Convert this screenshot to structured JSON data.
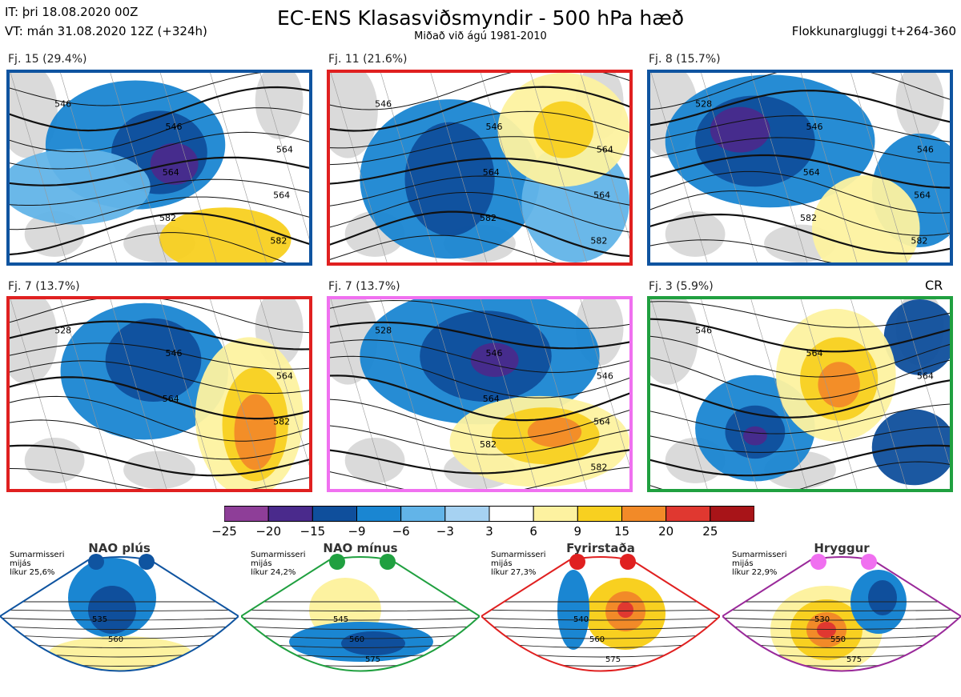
{
  "header": {
    "init_time": "IT: þri 18.08.2020 00Z",
    "valid_time": "VT: mán 31.08.2020 12Z  (+324h)",
    "title": "EC-ENS Klasasviðsmyndir - 500 hPa hæð",
    "subtitle": "Miðað við ágú 1981-2010",
    "window": "Flokkunargluggi t+264-360"
  },
  "chart_data": {
    "type": "heatmap",
    "title": "EC-ENS Klasasviðsmyndir - 500 hPa hæð",
    "subtitle": "Miðað við ágú 1981-2010",
    "colorbar": {
      "ticks": [
        "−25",
        "−20",
        "−15",
        "−9",
        "−6",
        "−3",
        "3",
        "6",
        "9",
        "15",
        "20",
        "25"
      ],
      "colors": [
        "#8e3e98",
        "#4a2a8c",
        "#0f4f9c",
        "#1a86d2",
        "#62b4e8",
        "#a6d2f2",
        "#ffffff",
        "#fdf2a0",
        "#f8d020",
        "#f28a28",
        "#e03830",
        "#a81418"
      ]
    },
    "clusters": [
      {
        "label": "Fj. 15 (29.4%)",
        "members": 15,
        "percent": 29.4,
        "regime": "NAO plús",
        "border_color": "#0f54a0",
        "contour_labels": [
          "546",
          "546",
          "564",
          "564",
          "564",
          "582",
          "582"
        ],
        "anomaly_blobs": [
          {
            "cx": 0.42,
            "cy": 0.38,
            "rx": 0.3,
            "ry": 0.34,
            "v": -6
          },
          {
            "cx": 0.5,
            "cy": 0.42,
            "rx": 0.16,
            "ry": 0.22,
            "v": -9
          },
          {
            "cx": 0.55,
            "cy": 0.48,
            "rx": 0.08,
            "ry": 0.11,
            "v": -15
          },
          {
            "cx": 0.22,
            "cy": 0.6,
            "rx": 0.25,
            "ry": 0.2,
            "v": -3
          },
          {
            "cx": 0.72,
            "cy": 0.88,
            "rx": 0.22,
            "ry": 0.17,
            "v": 6
          }
        ]
      },
      {
        "label": "Fj. 11 (21.6%)",
        "members": 11,
        "percent": 21.6,
        "regime": "Fyrirstaða",
        "border_color": "#e02020",
        "contour_labels": [
          "546",
          "546",
          "564",
          "564",
          "564",
          "582",
          "582"
        ],
        "anomaly_blobs": [
          {
            "cx": 0.4,
            "cy": 0.56,
            "rx": 0.3,
            "ry": 0.42,
            "v": -6
          },
          {
            "cx": 0.4,
            "cy": 0.56,
            "rx": 0.15,
            "ry": 0.3,
            "v": -9
          },
          {
            "cx": 0.82,
            "cy": 0.68,
            "rx": 0.18,
            "ry": 0.32,
            "v": -3
          },
          {
            "cx": 0.78,
            "cy": 0.3,
            "rx": 0.22,
            "ry": 0.3,
            "v": 3
          },
          {
            "cx": 0.78,
            "cy": 0.3,
            "rx": 0.1,
            "ry": 0.15,
            "v": 6
          }
        ]
      },
      {
        "label": "Fj. 8 (15.7%)",
        "members": 8,
        "percent": 15.7,
        "regime": "NAO plús",
        "border_color": "#0f54a0",
        "contour_labels": [
          "528",
          "546",
          "546",
          "564",
          "564",
          "582",
          "582"
        ],
        "anomaly_blobs": [
          {
            "cx": 0.4,
            "cy": 0.36,
            "rx": 0.35,
            "ry": 0.35,
            "v": -6
          },
          {
            "cx": 0.35,
            "cy": 0.36,
            "rx": 0.2,
            "ry": 0.24,
            "v": -9
          },
          {
            "cx": 0.3,
            "cy": 0.3,
            "rx": 0.1,
            "ry": 0.12,
            "v": -15
          },
          {
            "cx": 0.9,
            "cy": 0.62,
            "rx": 0.16,
            "ry": 0.3,
            "v": -6
          },
          {
            "cx": 0.72,
            "cy": 0.82,
            "rx": 0.18,
            "ry": 0.28,
            "v": 3
          }
        ]
      },
      {
        "label": "Fj. 7 (13.7%)",
        "members": 7,
        "percent": 13.7,
        "regime": "Fyrirstaða",
        "border_color": "#e02020",
        "contour_labels": [
          "528",
          "546",
          "564",
          "564",
          "582"
        ],
        "anomaly_blobs": [
          {
            "cx": 0.45,
            "cy": 0.38,
            "rx": 0.28,
            "ry": 0.36,
            "v": -6
          },
          {
            "cx": 0.48,
            "cy": 0.32,
            "rx": 0.16,
            "ry": 0.22,
            "v": -9
          },
          {
            "cx": 0.8,
            "cy": 0.62,
            "rx": 0.18,
            "ry": 0.42,
            "v": 3
          },
          {
            "cx": 0.82,
            "cy": 0.66,
            "rx": 0.11,
            "ry": 0.3,
            "v": 6
          },
          {
            "cx": 0.82,
            "cy": 0.7,
            "rx": 0.07,
            "ry": 0.2,
            "v": 9
          }
        ]
      },
      {
        "label": "Fj. 7 (13.7%)",
        "members": 7,
        "percent": 13.7,
        "regime": "Hryggur",
        "border_color": "#f070f0",
        "contour_labels": [
          "528",
          "546",
          "546",
          "564",
          "564",
          "582",
          "582"
        ],
        "anomaly_blobs": [
          {
            "cx": 0.5,
            "cy": 0.3,
            "rx": 0.4,
            "ry": 0.36,
            "v": -6
          },
          {
            "cx": 0.52,
            "cy": 0.3,
            "rx": 0.22,
            "ry": 0.24,
            "v": -9
          },
          {
            "cx": 0.55,
            "cy": 0.32,
            "rx": 0.08,
            "ry": 0.09,
            "v": -15
          },
          {
            "cx": 0.7,
            "cy": 0.75,
            "rx": 0.3,
            "ry": 0.24,
            "v": 3
          },
          {
            "cx": 0.72,
            "cy": 0.72,
            "rx": 0.18,
            "ry": 0.15,
            "v": 6
          },
          {
            "cx": 0.75,
            "cy": 0.7,
            "rx": 0.09,
            "ry": 0.08,
            "v": 9
          }
        ]
      },
      {
        "label": "Fj. 3 (5.9%)",
        "members": 3,
        "percent": 5.9,
        "regime": "NAO mínus",
        "border_color": "#20a040",
        "contour_labels": [
          "546",
          "564",
          "564"
        ],
        "anomaly_blobs": [
          {
            "cx": 0.35,
            "cy": 0.68,
            "rx": 0.2,
            "ry": 0.28,
            "v": -6
          },
          {
            "cx": 0.35,
            "cy": 0.7,
            "rx": 0.1,
            "ry": 0.14,
            "v": -9
          },
          {
            "cx": 0.35,
            "cy": 0.72,
            "rx": 0.04,
            "ry": 0.05,
            "v": -15
          },
          {
            "cx": 0.88,
            "cy": 0.78,
            "rx": 0.14,
            "ry": 0.2,
            "v": -9
          },
          {
            "cx": 0.9,
            "cy": 0.2,
            "rx": 0.12,
            "ry": 0.2,
            "v": -9
          },
          {
            "cx": 0.62,
            "cy": 0.4,
            "rx": 0.2,
            "ry": 0.35,
            "v": 3
          },
          {
            "cx": 0.63,
            "cy": 0.42,
            "rx": 0.13,
            "ry": 0.22,
            "v": 6
          },
          {
            "cx": 0.63,
            "cy": 0.45,
            "rx": 0.07,
            "ry": 0.12,
            "v": 9
          }
        ]
      }
    ],
    "regimes": [
      {
        "name": "NAO plús",
        "meta": [
          "Sumarmisseri",
          "mijás",
          "líkur 25,6%"
        ],
        "probability_percent": 25.6,
        "color": "#0f54a0",
        "contour_labels": [
          "535",
          "560"
        ]
      },
      {
        "name": "NAO mínus",
        "meta": [
          "Sumarmisseri",
          "mijás",
          "líkur 24,2%"
        ],
        "probability_percent": 24.2,
        "color": "#20a040",
        "contour_labels": [
          "545",
          "560",
          "575"
        ]
      },
      {
        "name": "Fyrirstaða",
        "meta": [
          "Sumarmisseri",
          "mijás",
          "líkur 27,3%"
        ],
        "probability_percent": 27.3,
        "color": "#e02020",
        "contour_labels": [
          "540",
          "560",
          "575"
        ]
      },
      {
        "name": "Hryggur",
        "meta": [
          "Sumarmisseri",
          "mijás",
          "líkur 22,9%"
        ],
        "probability_percent": 22.9,
        "color": "#9a2a9a",
        "contour_labels": [
          "530",
          "550",
          "575"
        ]
      }
    ]
  },
  "cr_label": "CR"
}
